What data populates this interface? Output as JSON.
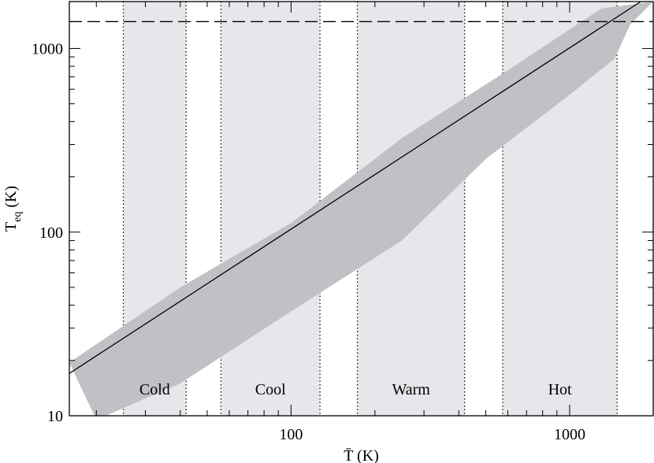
{
  "chart_data": {
    "type": "area",
    "xscale": "log",
    "yscale": "log",
    "xlim": [
      16,
      1995
    ],
    "ylim": [
      10,
      1800
    ],
    "xlabel": "T̄ (K)",
    "ylabel": {
      "main": "T",
      "sub": "eq",
      "suffix": " (K)"
    },
    "xticks": [
      {
        "value": 100,
        "label": "100"
      },
      {
        "value": 1000,
        "label": "1000"
      }
    ],
    "yticks": [
      {
        "value": 10,
        "label": "10"
      },
      {
        "value": 100,
        "label": "100"
      },
      {
        "value": 1000,
        "label": "1000"
      }
    ],
    "regions": [
      {
        "name": "Cold",
        "x0": 25,
        "x1": 42
      },
      {
        "name": "Cool",
        "x0": 56,
        "x1": 127
      },
      {
        "name": "Warm",
        "x0": 173,
        "x1": 420
      },
      {
        "name": "Hot",
        "x0": 575,
        "x1": 1480
      }
    ],
    "band_upper": [
      {
        "x": 16,
        "y": 19.5
      },
      {
        "x": 40,
        "y": 50
      },
      {
        "x": 100,
        "y": 112
      },
      {
        "x": 250,
        "y": 325
      },
      {
        "x": 600,
        "y": 760
      },
      {
        "x": 1300,
        "y": 1650
      },
      {
        "x": 1995,
        "y": 1800
      }
    ],
    "band_lower": [
      {
        "x": 1995,
        "y": 1800
      },
      {
        "x": 1650,
        "y": 1350
      },
      {
        "x": 1450,
        "y": 880
      },
      {
        "x": 1000,
        "y": 560
      },
      {
        "x": 500,
        "y": 250
      },
      {
        "x": 250,
        "y": 90
      },
      {
        "x": 100,
        "y": 37
      },
      {
        "x": 40,
        "y": 15
      },
      {
        "x": 20,
        "y": 9.5
      }
    ],
    "line": [
      {
        "x": 16,
        "y": 17
      },
      {
        "x": 1800,
        "y": 1800
      }
    ],
    "hline": {
      "y": 1400
    }
  }
}
